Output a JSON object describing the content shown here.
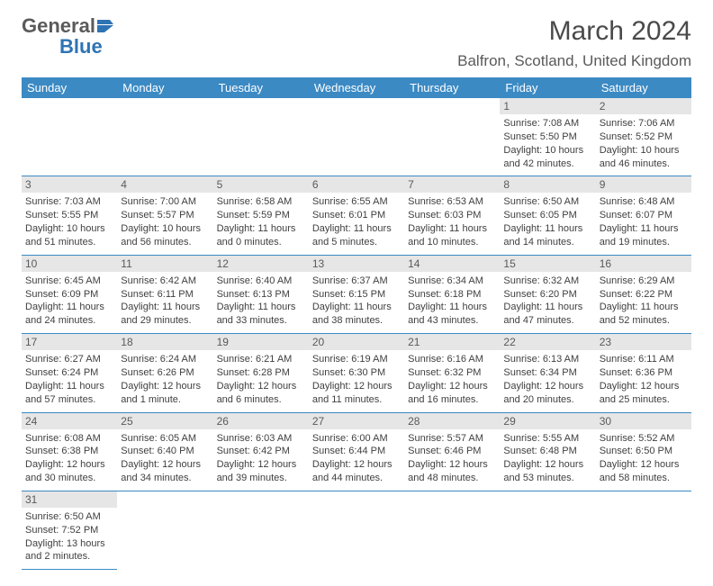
{
  "brand": {
    "general": "General",
    "blue": "Blue"
  },
  "header": {
    "month_title": "March 2024",
    "location": "Balfron, Scotland, United Kingdom"
  },
  "colors": {
    "brand_blue": "#2e74b5",
    "header_bg": "#3b8ac4",
    "daynum_bg": "#e6e6e6",
    "text": "#404040"
  },
  "weekdays": [
    "Sunday",
    "Monday",
    "Tuesday",
    "Wednesday",
    "Thursday",
    "Friday",
    "Saturday"
  ],
  "weeks": [
    [
      null,
      null,
      null,
      null,
      null,
      {
        "n": "1",
        "sr": "Sunrise: 7:08 AM",
        "ss": "Sunset: 5:50 PM",
        "dl": "Daylight: 10 hours and 42 minutes."
      },
      {
        "n": "2",
        "sr": "Sunrise: 7:06 AM",
        "ss": "Sunset: 5:52 PM",
        "dl": "Daylight: 10 hours and 46 minutes."
      }
    ],
    [
      {
        "n": "3",
        "sr": "Sunrise: 7:03 AM",
        "ss": "Sunset: 5:55 PM",
        "dl": "Daylight: 10 hours and 51 minutes."
      },
      {
        "n": "4",
        "sr": "Sunrise: 7:00 AM",
        "ss": "Sunset: 5:57 PM",
        "dl": "Daylight: 10 hours and 56 minutes."
      },
      {
        "n": "5",
        "sr": "Sunrise: 6:58 AM",
        "ss": "Sunset: 5:59 PM",
        "dl": "Daylight: 11 hours and 0 minutes."
      },
      {
        "n": "6",
        "sr": "Sunrise: 6:55 AM",
        "ss": "Sunset: 6:01 PM",
        "dl": "Daylight: 11 hours and 5 minutes."
      },
      {
        "n": "7",
        "sr": "Sunrise: 6:53 AM",
        "ss": "Sunset: 6:03 PM",
        "dl": "Daylight: 11 hours and 10 minutes."
      },
      {
        "n": "8",
        "sr": "Sunrise: 6:50 AM",
        "ss": "Sunset: 6:05 PM",
        "dl": "Daylight: 11 hours and 14 minutes."
      },
      {
        "n": "9",
        "sr": "Sunrise: 6:48 AM",
        "ss": "Sunset: 6:07 PM",
        "dl": "Daylight: 11 hours and 19 minutes."
      }
    ],
    [
      {
        "n": "10",
        "sr": "Sunrise: 6:45 AM",
        "ss": "Sunset: 6:09 PM",
        "dl": "Daylight: 11 hours and 24 minutes."
      },
      {
        "n": "11",
        "sr": "Sunrise: 6:42 AM",
        "ss": "Sunset: 6:11 PM",
        "dl": "Daylight: 11 hours and 29 minutes."
      },
      {
        "n": "12",
        "sr": "Sunrise: 6:40 AM",
        "ss": "Sunset: 6:13 PM",
        "dl": "Daylight: 11 hours and 33 minutes."
      },
      {
        "n": "13",
        "sr": "Sunrise: 6:37 AM",
        "ss": "Sunset: 6:15 PM",
        "dl": "Daylight: 11 hours and 38 minutes."
      },
      {
        "n": "14",
        "sr": "Sunrise: 6:34 AM",
        "ss": "Sunset: 6:18 PM",
        "dl": "Daylight: 11 hours and 43 minutes."
      },
      {
        "n": "15",
        "sr": "Sunrise: 6:32 AM",
        "ss": "Sunset: 6:20 PM",
        "dl": "Daylight: 11 hours and 47 minutes."
      },
      {
        "n": "16",
        "sr": "Sunrise: 6:29 AM",
        "ss": "Sunset: 6:22 PM",
        "dl": "Daylight: 11 hours and 52 minutes."
      }
    ],
    [
      {
        "n": "17",
        "sr": "Sunrise: 6:27 AM",
        "ss": "Sunset: 6:24 PM",
        "dl": "Daylight: 11 hours and 57 minutes."
      },
      {
        "n": "18",
        "sr": "Sunrise: 6:24 AM",
        "ss": "Sunset: 6:26 PM",
        "dl": "Daylight: 12 hours and 1 minute."
      },
      {
        "n": "19",
        "sr": "Sunrise: 6:21 AM",
        "ss": "Sunset: 6:28 PM",
        "dl": "Daylight: 12 hours and 6 minutes."
      },
      {
        "n": "20",
        "sr": "Sunrise: 6:19 AM",
        "ss": "Sunset: 6:30 PM",
        "dl": "Daylight: 12 hours and 11 minutes."
      },
      {
        "n": "21",
        "sr": "Sunrise: 6:16 AM",
        "ss": "Sunset: 6:32 PM",
        "dl": "Daylight: 12 hours and 16 minutes."
      },
      {
        "n": "22",
        "sr": "Sunrise: 6:13 AM",
        "ss": "Sunset: 6:34 PM",
        "dl": "Daylight: 12 hours and 20 minutes."
      },
      {
        "n": "23",
        "sr": "Sunrise: 6:11 AM",
        "ss": "Sunset: 6:36 PM",
        "dl": "Daylight: 12 hours and 25 minutes."
      }
    ],
    [
      {
        "n": "24",
        "sr": "Sunrise: 6:08 AM",
        "ss": "Sunset: 6:38 PM",
        "dl": "Daylight: 12 hours and 30 minutes."
      },
      {
        "n": "25",
        "sr": "Sunrise: 6:05 AM",
        "ss": "Sunset: 6:40 PM",
        "dl": "Daylight: 12 hours and 34 minutes."
      },
      {
        "n": "26",
        "sr": "Sunrise: 6:03 AM",
        "ss": "Sunset: 6:42 PM",
        "dl": "Daylight: 12 hours and 39 minutes."
      },
      {
        "n": "27",
        "sr": "Sunrise: 6:00 AM",
        "ss": "Sunset: 6:44 PM",
        "dl": "Daylight: 12 hours and 44 minutes."
      },
      {
        "n": "28",
        "sr": "Sunrise: 5:57 AM",
        "ss": "Sunset: 6:46 PM",
        "dl": "Daylight: 12 hours and 48 minutes."
      },
      {
        "n": "29",
        "sr": "Sunrise: 5:55 AM",
        "ss": "Sunset: 6:48 PM",
        "dl": "Daylight: 12 hours and 53 minutes."
      },
      {
        "n": "30",
        "sr": "Sunrise: 5:52 AM",
        "ss": "Sunset: 6:50 PM",
        "dl": "Daylight: 12 hours and 58 minutes."
      }
    ],
    [
      {
        "n": "31",
        "sr": "Sunrise: 6:50 AM",
        "ss": "Sunset: 7:52 PM",
        "dl": "Daylight: 13 hours and 2 minutes."
      },
      null,
      null,
      null,
      null,
      null,
      null
    ]
  ]
}
